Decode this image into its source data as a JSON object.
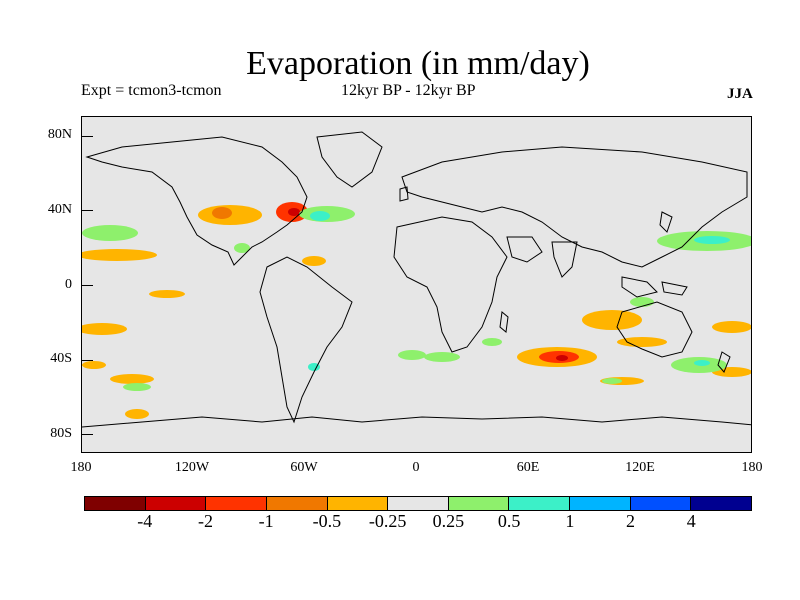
{
  "title": "Evaporation (in mm/day)",
  "subtitle_left": "Expt = tcmon3-tcmon",
  "subtitle_center": "12kyr BP - 12kyr BP",
  "season": "JJA",
  "map": {
    "land_color": "#e6e6e6",
    "y_axis_labels": [
      "80N",
      "40N",
      "0",
      "40S",
      "80S"
    ],
    "x_axis_labels": [
      "180",
      "120W",
      "60W",
      "0",
      "60E",
      "120E",
      "180"
    ]
  },
  "colorbar": {
    "colors": [
      "#7f0000",
      "#cc0000",
      "#ff3300",
      "#f07800",
      "#ffb400",
      "#e6e6e6",
      "#8ef06c",
      "#3cf0c8",
      "#00b4ff",
      "#0050ff",
      "#000090"
    ],
    "labels": [
      "-4",
      "-2",
      "-1",
      "-0.5",
      "-0.25",
      "0.25",
      "0.5",
      "1",
      "2",
      "4"
    ]
  }
}
